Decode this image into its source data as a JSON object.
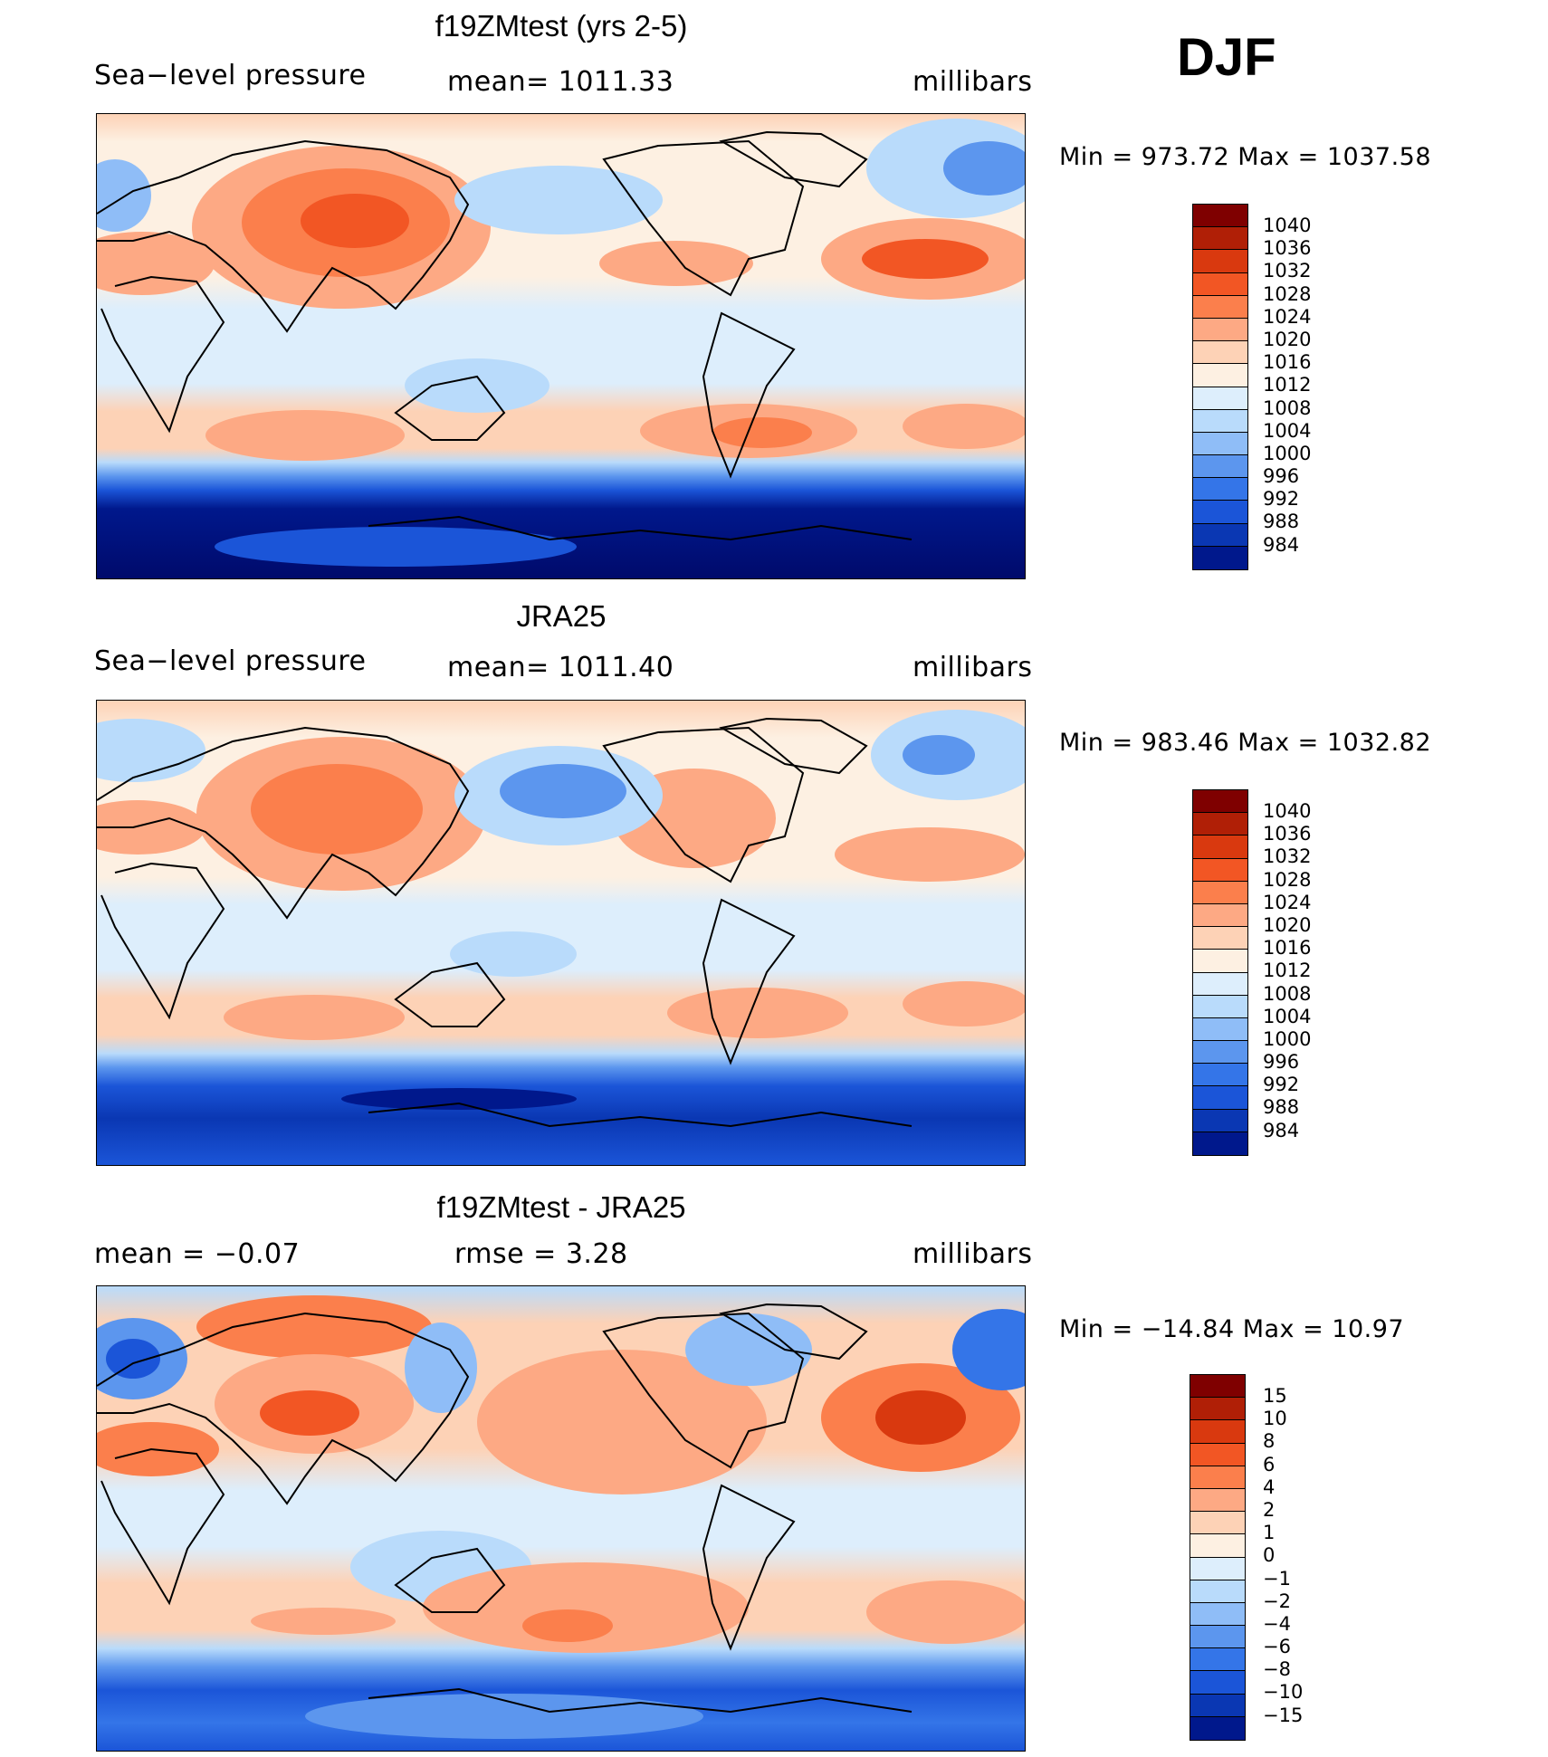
{
  "season": "DJF",
  "panels": [
    {
      "title": "f19ZMtest (yrs 2-5)",
      "left_label": "Sea−level pressure",
      "center_label": "mean=  1011.33",
      "right_label": "millibars",
      "minmax": "Min  =  973.72  Max  =  1037.58",
      "colorbar": {
        "colors": [
          "#7f0000",
          "#b01f06",
          "#d9390f",
          "#f25624",
          "#fb7f4c",
          "#fda984",
          "#fdd2b6",
          "#fdf0e2",
          "#ddeefc",
          "#b9dbfb",
          "#8fbdf7",
          "#5c96ee",
          "#3475e8",
          "#1b55d8",
          "#0a37b3",
          "#00188c",
          "#000a6b"
        ],
        "labels": [
          "1040",
          "1036",
          "1032",
          "1028",
          "1024",
          "1020",
          "1016",
          "1012",
          "1008",
          "1004",
          "1000",
          "996",
          "992",
          "988",
          "984"
        ]
      }
    },
    {
      "title": "JRA25",
      "left_label": "Sea−level pressure",
      "center_label": "mean=  1011.40",
      "right_label": "millibars",
      "minmax": "Min  =  983.46  Max  =  1032.82",
      "colorbar": {
        "colors": [
          "#7f0000",
          "#b01f06",
          "#d9390f",
          "#f25624",
          "#fb7f4c",
          "#fda984",
          "#fdd2b6",
          "#fdf0e2",
          "#ddeefc",
          "#b9dbfb",
          "#8fbdf7",
          "#5c96ee",
          "#3475e8",
          "#1b55d8",
          "#0a37b3",
          "#00188c",
          "#000a6b"
        ],
        "labels": [
          "1040",
          "1036",
          "1032",
          "1028",
          "1024",
          "1020",
          "1016",
          "1012",
          "1008",
          "1004",
          "1000",
          "996",
          "992",
          "988",
          "984"
        ]
      }
    },
    {
      "title": "f19ZMtest - JRA25",
      "left_label": "mean  =    −0.07",
      "center_label": "rmse  =     3.28",
      "right_label": "millibars",
      "minmax": "Min  =  −14.84  Max  =    10.97",
      "colorbar": {
        "colors": [
          "#7f0000",
          "#b01f06",
          "#d9390f",
          "#f25624",
          "#fb7f4c",
          "#fda984",
          "#fdd2b6",
          "#fdf0e2",
          "#ddeefc",
          "#b9dbfb",
          "#8fbdf7",
          "#5c96ee",
          "#3475e8",
          "#1b55d8",
          "#0a37b3",
          "#00188c",
          "#000a6b"
        ],
        "labels": [
          "15",
          "10",
          "8",
          "6",
          "4",
          "2",
          "1",
          "0",
          "−1",
          "−2",
          "−4",
          "−6",
          "−8",
          "−10",
          "−15"
        ]
      }
    }
  ]
}
